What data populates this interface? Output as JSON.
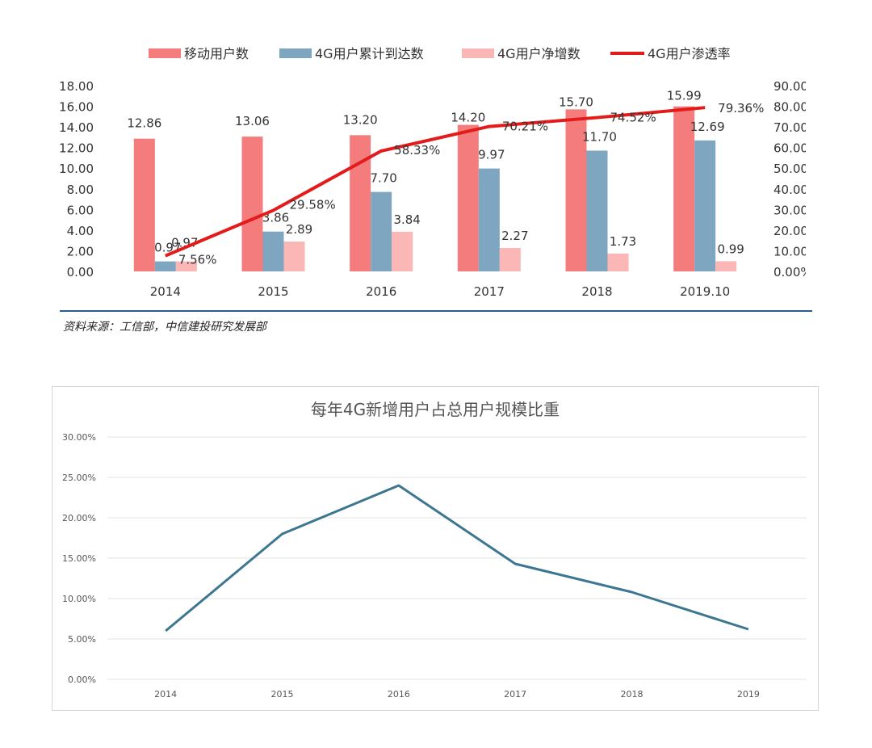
{
  "chart_data": [
    {
      "type": "bar",
      "categories": [
        "2014",
        "2015",
        "2016",
        "2017",
        "2018",
        "2019.10"
      ],
      "series": [
        {
          "name": "移动用户数",
          "kind": "bar",
          "axis": "left",
          "color": "#f47c7c",
          "values": [
            12.86,
            13.06,
            13.2,
            14.2,
            15.7,
            15.99
          ],
          "labels": [
            "12.86",
            "13.06",
            "13.20",
            "14.20",
            "15.70",
            "15.99"
          ]
        },
        {
          "name": "4G用户累计到达数",
          "kind": "bar",
          "axis": "left",
          "color": "#7ea6c0",
          "values": [
            0.97,
            3.86,
            7.7,
            9.97,
            11.7,
            12.69
          ],
          "labels": [
            "0.97",
            "3.86",
            "7.70",
            "9.97",
            "11.70",
            "12.69"
          ]
        },
        {
          "name": "4G用户净增数",
          "kind": "bar",
          "axis": "left",
          "color": "#fbb6b6",
          "values": [
            0.97,
            2.89,
            3.84,
            2.27,
            1.73,
            0.99
          ],
          "labels": [
            "0.97",
            "2.89",
            "3.84",
            "2.27",
            "1.73",
            "0.99"
          ]
        },
        {
          "name": "4G用户渗透率",
          "kind": "line",
          "axis": "right",
          "color": "#e31b1b",
          "values": [
            7.56,
            29.58,
            58.33,
            70.21,
            74.52,
            79.36
          ],
          "labels": [
            "7.56%",
            "29.58%",
            "58.33%",
            "70.21%",
            "74.52%",
            "79.36%"
          ]
        }
      ],
      "ylim": [
        0,
        18
      ],
      "yticks": [
        "0.00",
        "2.00",
        "4.00",
        "6.00",
        "8.00",
        "10.00",
        "12.00",
        "14.00",
        "16.00",
        "18.00"
      ],
      "y2lim": [
        0,
        90
      ],
      "y2ticks": [
        "0.00%",
        "10.00%",
        "20.00%",
        "30.00%",
        "40.00%",
        "50.00%",
        "60.00%",
        "70.00%",
        "80.00%",
        "90.00%"
      ],
      "legend_position": "top",
      "grid": false
    },
    {
      "type": "line",
      "title": "每年4G新增用户占总用户规模比重",
      "categories": [
        "2014",
        "2015",
        "2016",
        "2017",
        "2018",
        "2019"
      ],
      "series": [
        {
          "color": "#3d7691",
          "values": [
            6.0,
            18.0,
            24.0,
            14.3,
            10.8,
            6.2
          ]
        }
      ],
      "ylim": [
        0,
        30
      ],
      "yticks": [
        "0.00%",
        "5.00%",
        "10.00%",
        "15.00%",
        "20.00%",
        "25.00%",
        "30.00%"
      ],
      "grid": true
    }
  ],
  "source_note": "资料来源：工信部，中信建投研究发展部",
  "colors": {
    "separator": "#2d5d8c",
    "grid": "#e3e3e3",
    "frame": "#d6d6d6"
  }
}
